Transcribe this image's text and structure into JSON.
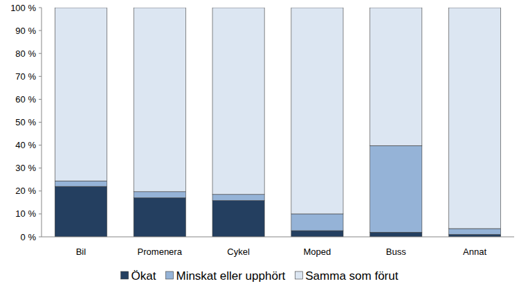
{
  "chart_data": {
    "type": "bar",
    "stacked": true,
    "legend": "bottom",
    "grid": false,
    "categories": [
      "Bil",
      "Promenera",
      "Cykel",
      "Moped",
      "Buss",
      "Annat"
    ],
    "series": [
      {
        "name": "Ökat",
        "color": "#243f60",
        "values": [
          22,
          17,
          15.8,
          2.7,
          2,
          1
        ]
      },
      {
        "name": "Minskat eller upphört",
        "color": "#95b3d7",
        "values": [
          2.4,
          2.7,
          2.7,
          7.3,
          37.8,
          2.6
        ]
      },
      {
        "name": "Samma som förut",
        "color": "#dce6f2",
        "values": [
          75.6,
          80.3,
          81.5,
          90,
          60.2,
          96.4
        ]
      }
    ],
    "ylim": [
      0,
      100
    ],
    "yticks": [
      {
        "value": 0,
        "label": "0 %"
      },
      {
        "value": 10,
        "label": "10 %"
      },
      {
        "value": 20,
        "label": "20 %"
      },
      {
        "value": 30,
        "label": "30 %"
      },
      {
        "value": 40,
        "label": "40 %"
      },
      {
        "value": 50,
        "label": "50 %"
      },
      {
        "value": 60,
        "label": "60 %"
      },
      {
        "value": 70,
        "label": "70 %"
      },
      {
        "value": 80,
        "label": "80 %"
      },
      {
        "value": 90,
        "label": "90 %"
      },
      {
        "value": 100,
        "label": "100 %"
      }
    ]
  }
}
